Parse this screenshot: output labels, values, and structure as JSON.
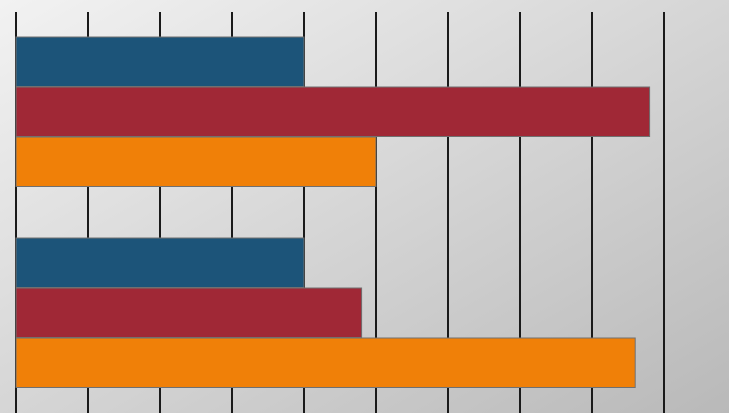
{
  "chart_data": {
    "type": "bar",
    "orientation": "horizontal",
    "title": "",
    "xlabel": "",
    "ylabel": "",
    "xlim": [
      0,
      9
    ],
    "grid": "vertical",
    "legend": "none",
    "categories": [
      "",
      ""
    ],
    "series": [
      {
        "color": "#1c5479",
        "values": [
          4,
          4
        ]
      },
      {
        "color": "#a02836",
        "values": [
          8.8,
          4.8
        ]
      },
      {
        "color": "#f08008",
        "values": [
          5,
          8.6
        ]
      }
    ]
  },
  "colors": {
    "background_light": "#f2f2f2",
    "background_dark": "#b9b9b9",
    "gridline": "#1a1a1a",
    "bar_outline": "#707070"
  }
}
